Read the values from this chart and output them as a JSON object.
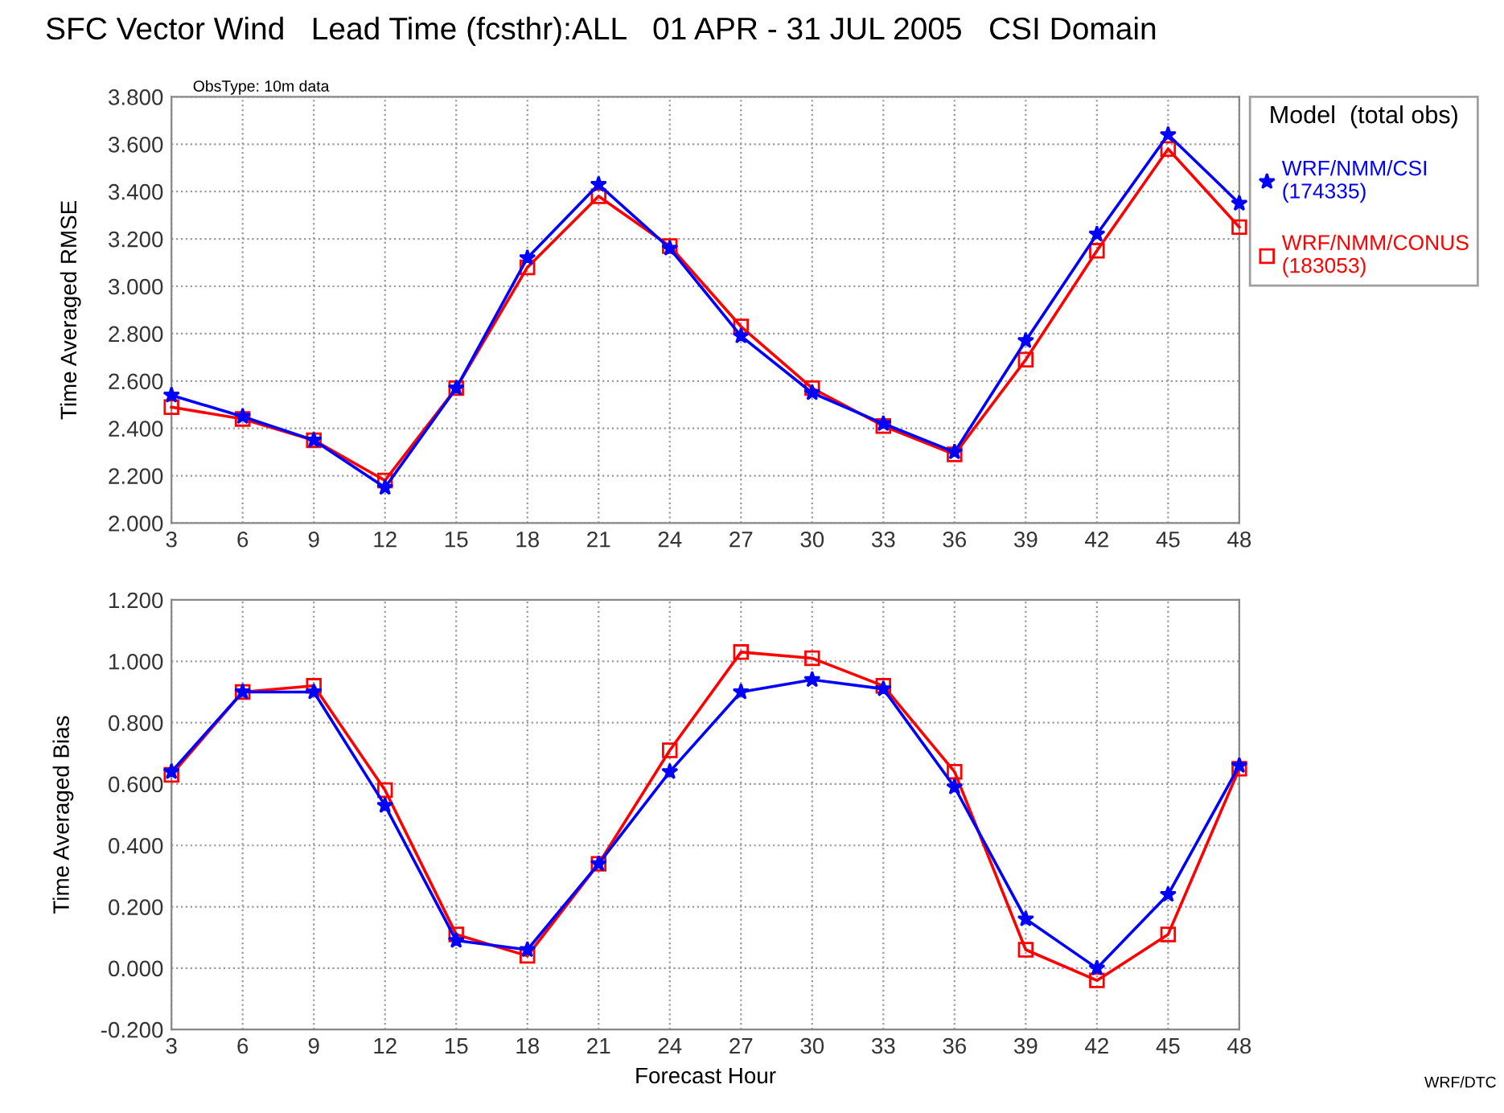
{
  "chart_data": [
    {
      "type": "line",
      "title": "SFC Vector Wind   Lead Time (fcsthr):ALL   01 APR - 31 JUL 2005   CSI Domain",
      "ylabel": "Time Averaged RMSE",
      "annotations": [
        "ObsType: 10m data"
      ],
      "x": [
        3,
        6,
        9,
        12,
        15,
        18,
        21,
        24,
        27,
        30,
        33,
        36,
        39,
        42,
        45,
        48
      ],
      "series": [
        {
          "name": "WRF/NMM/CSI\n(174335)",
          "color": "#0000ff",
          "marker": "star",
          "values": [
            2.54,
            2.45,
            2.35,
            2.15,
            2.57,
            3.12,
            3.43,
            3.16,
            2.79,
            2.55,
            2.42,
            2.3,
            2.77,
            3.22,
            3.64,
            3.35
          ]
        },
        {
          "name": "WRF/NMM/CONUS\n(183053)",
          "color": "#ff0000",
          "marker": "square",
          "values": [
            2.49,
            2.44,
            2.35,
            2.18,
            2.57,
            3.08,
            3.38,
            3.17,
            2.83,
            2.57,
            2.41,
            2.29,
            2.69,
            3.15,
            3.58,
            3.25
          ]
        }
      ],
      "xlim": [
        3,
        48
      ],
      "xticks": [
        3,
        6,
        9,
        12,
        15,
        18,
        21,
        24,
        27,
        30,
        33,
        36,
        39,
        42,
        45,
        48
      ],
      "ylim": [
        2.0,
        3.8
      ],
      "yticks": [
        {
          "value": 2.0,
          "label": "2.000"
        },
        {
          "value": 2.2,
          "label": "2.200"
        },
        {
          "value": 2.4,
          "label": "2.400"
        },
        {
          "value": 2.6,
          "label": "2.600"
        },
        {
          "value": 2.8,
          "label": "2.800"
        },
        {
          "value": 3.0,
          "label": "3.000"
        },
        {
          "value": 3.2,
          "label": "3.200"
        },
        {
          "value": 3.4,
          "label": "3.400"
        },
        {
          "value": 3.6,
          "label": "3.600"
        },
        {
          "value": 3.8,
          "label": "3.800"
        }
      ],
      "grid": true,
      "legend": "right",
      "legend_title": "Model  (total obs)",
      "line_style": "solid"
    },
    {
      "type": "line",
      "xlabel": "Forecast Hour",
      "ylabel": "Time Averaged Bias",
      "annotations": [
        "WRF/DTC"
      ],
      "x": [
        3,
        6,
        9,
        12,
        15,
        18,
        21,
        24,
        27,
        30,
        33,
        36,
        39,
        42,
        45,
        48
      ],
      "series": [
        {
          "color": "#0000ff",
          "marker": "star",
          "values": [
            0.64,
            0.9,
            0.9,
            0.53,
            0.09,
            0.06,
            0.34,
            0.64,
            0.9,
            0.94,
            0.91,
            0.59,
            0.16,
            0.0,
            0.24,
            0.66
          ]
        },
        {
          "color": "#ff0000",
          "marker": "square",
          "values": [
            0.63,
            0.9,
            0.92,
            0.58,
            0.11,
            0.04,
            0.34,
            0.71,
            1.03,
            1.01,
            0.92,
            0.64,
            0.06,
            -0.04,
            0.11,
            0.65
          ]
        }
      ],
      "xlim": [
        3,
        48
      ],
      "xticks": [
        3,
        6,
        9,
        12,
        15,
        18,
        21,
        24,
        27,
        30,
        33,
        36,
        39,
        42,
        45,
        48
      ],
      "ylim": [
        -0.2,
        1.2
      ],
      "yticks": [
        {
          "value": -0.2,
          "label": "-0.200"
        },
        {
          "value": 0.0,
          "label": "0.000"
        },
        {
          "value": 0.2,
          "label": "0.200"
        },
        {
          "value": 0.4,
          "label": "0.400"
        },
        {
          "value": 0.6,
          "label": "0.600"
        },
        {
          "value": 0.8,
          "label": "0.800"
        },
        {
          "value": 1.0,
          "label": "1.000"
        },
        {
          "value": 1.2,
          "label": "1.200"
        }
      ],
      "grid": true,
      "line_style": "solid"
    }
  ]
}
